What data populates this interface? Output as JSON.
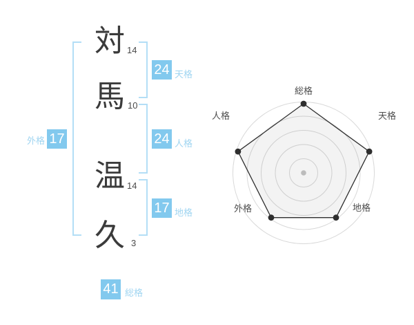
{
  "name_diagram": {
    "characters": [
      {
        "char": "対",
        "strokes": "14"
      },
      {
        "char": "馬",
        "strokes": "10"
      },
      {
        "char": "温",
        "strokes": "14"
      },
      {
        "char": "久",
        "strokes": "3"
      }
    ],
    "values": {
      "gaikaku": {
        "label": "外格",
        "value": "17"
      },
      "tenkaku": {
        "label": "天格",
        "value": "24"
      },
      "jinkaku": {
        "label": "人格",
        "value": "24"
      },
      "chikaku": {
        "label": "地格",
        "value": "17"
      },
      "soukaku": {
        "label": "総格",
        "value": "41"
      }
    }
  },
  "chart_data": {
    "type": "radar",
    "categories": [
      "総格",
      "天格",
      "地格",
      "外格",
      "人格"
    ],
    "values": [
      5,
      5,
      4,
      4,
      5
    ],
    "axis_numbers_shown_on_left_panel": [
      41,
      24,
      17,
      17,
      24
    ],
    "scale": {
      "min": 0,
      "max": 5,
      "rings": 5
    },
    "grid": "concentric-circles",
    "legend": "none",
    "title": ""
  },
  "colors": {
    "background": "#ffffff",
    "value_box_blue": "#82c9ee",
    "value_box_text": "#ffffff",
    "light_blue_label": "#a0d5f1",
    "bracket_blue": "#b3def6",
    "kanji_text": "#3b3b3b",
    "stroke_count_text": "#4a4a4a",
    "radar_grid": "#d9d9d9",
    "radar_series": "#2e2e2e",
    "radar_label": "#4d4d4d"
  }
}
